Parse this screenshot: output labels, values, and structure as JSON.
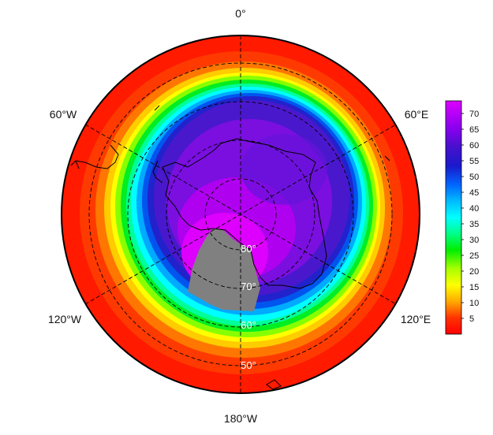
{
  "map": {
    "longitude_labels": {
      "top": "0°",
      "upper_left": "60°W",
      "upper_right": "60°E",
      "lower_left": "120°W",
      "lower_right": "120°E",
      "bottom": "180°W"
    },
    "latitude_labels": [
      "80°",
      "70°",
      "60°",
      "50°"
    ],
    "no_data_color": "#808080",
    "coastline_color": "#000000"
  },
  "colorbar": {
    "ticks": [
      "5",
      "10",
      "15",
      "20",
      "25",
      "30",
      "35",
      "40",
      "45",
      "50",
      "55",
      "60",
      "65",
      "70"
    ],
    "min": 0,
    "max": 74,
    "palette": [
      "#ff0000",
      "#ff6600",
      "#ffcc00",
      "#ffff00",
      "#99ff00",
      "#00ee00",
      "#00ff99",
      "#00ffff",
      "#00aaff",
      "#0055ff",
      "#1a1acc",
      "#5511dd",
      "#9900ee",
      "#dd00ff"
    ]
  }
}
